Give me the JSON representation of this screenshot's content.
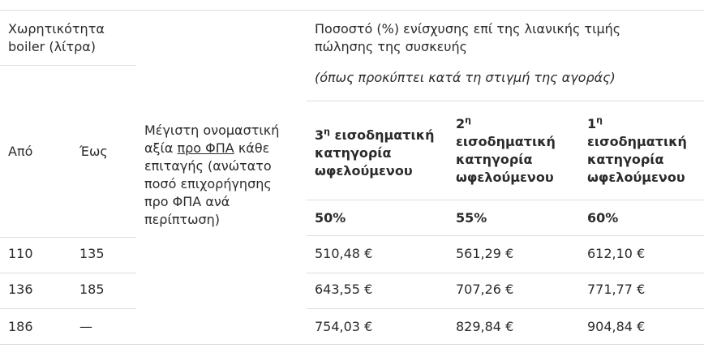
{
  "header": {
    "capacity_label": "Χωρητικότητα boiler (λίτρα)",
    "capacity_line1": "Χωρητικότητα",
    "capacity_line2": "boiler (λίτρα)",
    "percent_line1": "Ποσοστό (%) ενίσχυσης  επί της λιανικής τιμής",
    "percent_line2": "πώλησης της συσκευής",
    "percent_note": "(όπως προκύπτει κατά τη στιγμή της αγοράς)",
    "from": "Από",
    "to": "Έως",
    "max_value_pre": "Μέγιστη ονομαστική",
    "max_value_line2_pre": "αξία ",
    "max_value_line2_u": "προ ΦΠΑ",
    "max_value_line2_post": " κάθε",
    "max_value_line3": "επιταγής (ανώτατο",
    "max_value_line4": "ποσό επιχορήγησης",
    "max_value_line5": "προ ΦΠΑ ανά",
    "max_value_line6": "περίπτωση)"
  },
  "categories": [
    {
      "num": "3",
      "sup": "η",
      "line1_rest": " εισοδηματική",
      "line2": "κατηγορία",
      "line3": "ωφελούμενου",
      "percent": "50%"
    },
    {
      "num": "2",
      "sup": "η",
      "line2": "εισοδηματική",
      "line3": "κατηγορία",
      "line4": "ωφελούμενου",
      "percent": "55%"
    },
    {
      "num": "1",
      "sup": "η",
      "line2": "εισοδηματική",
      "line3": "κατηγορία",
      "line4": "ωφελούμενου",
      "percent": "60%"
    }
  ],
  "rows": [
    {
      "from": "110",
      "to": "135",
      "c3": "510,48 €",
      "c2": "561,29 €",
      "c1": "612,10 €"
    },
    {
      "from": "136",
      "to": "185",
      "c3": "643,55 €",
      "c2": "707,26 €",
      "c1": "771,77 €"
    },
    {
      "from": "186",
      "to": "—",
      "c3": "754,03 €",
      "c2": "829,84 €",
      "c1": "904,84 €"
    }
  ]
}
